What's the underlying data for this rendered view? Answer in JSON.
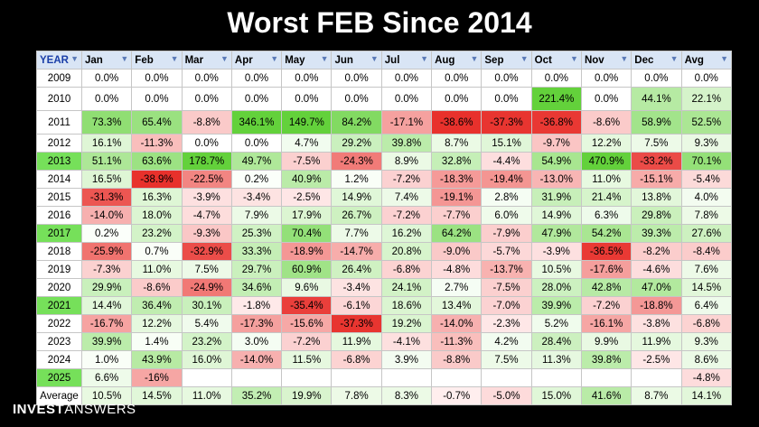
{
  "title": "Worst FEB Since 2014",
  "logo": {
    "bold": "INVEST",
    "thin": "ANSWERS"
  },
  "chart_data": {
    "type": "table",
    "columns": [
      "YEAR",
      "Jan",
      "Feb",
      "Mar",
      "Apr",
      "May",
      "Jun",
      "Jul",
      "Aug",
      "Sep",
      "Oct",
      "Nov",
      "Dec",
      "Avg"
    ],
    "highlight_years": [
      "2013",
      "2017",
      "2021",
      "2025"
    ],
    "rows": [
      [
        "2009",
        "0.0%",
        "0.0%",
        "0.0%",
        "0.0%",
        "0.0%",
        "0.0%",
        "0.0%",
        "0.0%",
        "0.0%",
        "0.0%",
        "0.0%",
        "0.0%",
        "0.0%"
      ],
      [
        "2010",
        "0.0%",
        "0.0%",
        "0.0%",
        "0.0%",
        "0.0%",
        "0.0%",
        "0.0%",
        "0.0%",
        "0.0%",
        "221.4%",
        "0.0%",
        "44.1%",
        "22.1%"
      ],
      [
        "2011",
        "73.3%",
        "65.4%",
        "-8.8%",
        "346.1%",
        "149.7%",
        "84.2%",
        "-17.1%",
        "-38.6%",
        "-37.3%",
        "-36.8%",
        "-8.6%",
        "58.9%",
        "52.5%"
      ],
      [
        "2012",
        "16.1%",
        "-11.3%",
        "0.0%",
        "0.0%",
        "4.7%",
        "29.2%",
        "39.8%",
        "8.7%",
        "15.1%",
        "-9.7%",
        "12.2%",
        "7.5%",
        "9.3%"
      ],
      [
        "2013",
        "51.1%",
        "63.6%",
        "178.7%",
        "49.7%",
        "-7.5%",
        "-24.3%",
        "8.9%",
        "32.8%",
        "-4.4%",
        "54.9%",
        "470.9%",
        "-33.2%",
        "70.1%"
      ],
      [
        "2014",
        "16.5%",
        "-38.9%",
        "-22.5%",
        "0.2%",
        "40.9%",
        "1.2%",
        "-7.2%",
        "-18.3%",
        "-19.4%",
        "-13.0%",
        "11.0%",
        "-15.1%",
        "-5.4%"
      ],
      [
        "2015",
        "-31.3%",
        "16.3%",
        "-3.9%",
        "-3.4%",
        "-2.5%",
        "14.9%",
        "7.4%",
        "-19.1%",
        "2.8%",
        "31.9%",
        "21.4%",
        "13.8%",
        "4.0%"
      ],
      [
        "2016",
        "-14.0%",
        "18.0%",
        "-4.7%",
        "7.9%",
        "17.9%",
        "26.7%",
        "-7.2%",
        "-7.7%",
        "6.0%",
        "14.9%",
        "6.3%",
        "29.8%",
        "7.8%"
      ],
      [
        "2017",
        "0.2%",
        "23.2%",
        "-9.3%",
        "25.3%",
        "70.4%",
        "7.7%",
        "16.2%",
        "64.2%",
        "-7.9%",
        "47.9%",
        "54.2%",
        "39.3%",
        "27.6%"
      ],
      [
        "2018",
        "-25.9%",
        "0.7%",
        "-32.9%",
        "33.3%",
        "-18.9%",
        "-14.7%",
        "20.8%",
        "-9.0%",
        "-5.7%",
        "-3.9%",
        "-36.5%",
        "-8.2%",
        "-8.4%"
      ],
      [
        "2019",
        "-7.3%",
        "11.0%",
        "7.5%",
        "29.7%",
        "60.9%",
        "26.4%",
        "-6.8%",
        "-4.8%",
        "-13.7%",
        "10.5%",
        "-17.6%",
        "-4.6%",
        "7.6%"
      ],
      [
        "2020",
        "29.9%",
        "-8.6%",
        "-24.9%",
        "34.6%",
        "9.6%",
        "-3.4%",
        "24.1%",
        "2.7%",
        "-7.5%",
        "28.0%",
        "42.8%",
        "47.0%",
        "14.5%"
      ],
      [
        "2021",
        "14.4%",
        "36.4%",
        "30.1%",
        "-1.8%",
        "-35.4%",
        "-6.1%",
        "18.6%",
        "13.4%",
        "-7.0%",
        "39.9%",
        "-7.2%",
        "-18.8%",
        "6.4%"
      ],
      [
        "2022",
        "-16.7%",
        "12.2%",
        "5.4%",
        "-17.3%",
        "-15.6%",
        "-37.3%",
        "19.2%",
        "-14.0%",
        "-2.3%",
        "5.2%",
        "-16.1%",
        "-3.8%",
        "-6.8%"
      ],
      [
        "2023",
        "39.9%",
        "1.4%",
        "23.2%",
        "3.0%",
        "-7.2%",
        "11.9%",
        "-4.1%",
        "-11.3%",
        "4.2%",
        "28.4%",
        "9.9%",
        "11.9%",
        "9.3%"
      ],
      [
        "2024",
        "1.0%",
        "43.9%",
        "16.0%",
        "-14.0%",
        "11.5%",
        "-6.8%",
        "3.9%",
        "-8.8%",
        "7.5%",
        "11.3%",
        "39.8%",
        "-2.5%",
        "8.6%"
      ],
      [
        "2025",
        "6.6%",
        "-16%",
        "",
        "",
        "",
        "",
        "",
        "",
        "",
        "",
        "",
        "",
        "-4.8%"
      ],
      [
        "Average",
        "10.5%",
        "14.5%",
        "11.0%",
        "35.2%",
        "19.9%",
        "7.8%",
        "8.3%",
        "-0.7%",
        "-5.0%",
        "15.0%",
        "41.6%",
        "8.7%",
        "14.1%"
      ]
    ],
    "colors": {
      "positive_strong": "#63d13b",
      "negative_strong": "#e8312c",
      "highlight_year": "#76e05a",
      "header": "#d9e5f5"
    }
  }
}
